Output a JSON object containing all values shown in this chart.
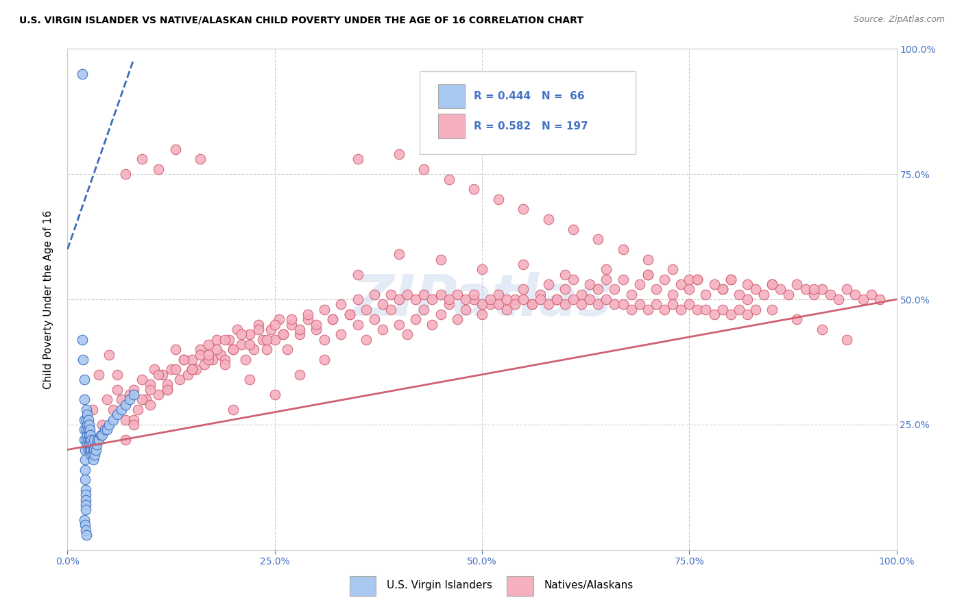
{
  "title": "U.S. VIRGIN ISLANDER VS NATIVE/ALASKAN CHILD POVERTY UNDER THE AGE OF 16 CORRELATION CHART",
  "source": "Source: ZipAtlas.com",
  "ylabel": "Child Poverty Under the Age of 16",
  "xlim": [
    0,
    1.0
  ],
  "ylim": [
    0,
    1.0
  ],
  "xtick_labels": [
    "0.0%",
    "25.0%",
    "50.0%",
    "75.0%",
    "100.0%"
  ],
  "xtick_vals": [
    0.0,
    0.25,
    0.5,
    0.75,
    1.0
  ],
  "ytick_labels_right": [
    "100.0%",
    "75.0%",
    "50.0%",
    "25.0%"
  ],
  "ytick_vals_right": [
    1.0,
    0.75,
    0.5,
    0.25
  ],
  "legend_text1": "R = 0.444   N =  66",
  "legend_text2": "R = 0.582   N = 197",
  "color_vi": "#a8c8f0",
  "color_vi_line": "#3a6bbf",
  "color_vi_line_solid": "#2060c0",
  "color_na": "#f5b0c0",
  "color_na_line": "#d06070",
  "color_accent": "#4472c4",
  "background_color": "#ffffff",
  "grid_color": "#cccccc",
  "watermark": "ZIPatlas",
  "title_fontsize": 10,
  "axis_label_fontsize": 11,
  "tick_fontsize": 10,
  "vi_scatter_x": [
    0.018,
    0.018,
    0.019,
    0.02,
    0.02,
    0.02,
    0.02,
    0.02,
    0.021,
    0.021,
    0.021,
    0.021,
    0.022,
    0.022,
    0.022,
    0.022,
    0.022,
    0.023,
    0.023,
    0.023,
    0.023,
    0.024,
    0.024,
    0.024,
    0.024,
    0.025,
    0.025,
    0.025,
    0.025,
    0.026,
    0.026,
    0.026,
    0.027,
    0.027,
    0.027,
    0.028,
    0.028,
    0.028,
    0.029,
    0.029,
    0.03,
    0.03,
    0.031,
    0.031,
    0.032,
    0.032,
    0.033,
    0.034,
    0.035,
    0.036,
    0.038,
    0.04,
    0.042,
    0.045,
    0.048,
    0.05,
    0.055,
    0.06,
    0.065,
    0.07,
    0.075,
    0.08,
    0.02,
    0.021,
    0.022,
    0.023
  ],
  "vi_scatter_y": [
    0.95,
    0.42,
    0.38,
    0.34,
    0.3,
    0.26,
    0.24,
    0.22,
    0.2,
    0.18,
    0.16,
    0.14,
    0.12,
    0.11,
    0.1,
    0.09,
    0.08,
    0.28,
    0.26,
    0.24,
    0.22,
    0.27,
    0.25,
    0.23,
    0.21,
    0.26,
    0.24,
    0.22,
    0.2,
    0.25,
    0.23,
    0.21,
    0.24,
    0.22,
    0.2,
    0.23,
    0.21,
    0.19,
    0.22,
    0.2,
    0.21,
    0.19,
    0.2,
    0.18,
    0.22,
    0.2,
    0.19,
    0.2,
    0.21,
    0.22,
    0.22,
    0.23,
    0.23,
    0.24,
    0.24,
    0.25,
    0.26,
    0.27,
    0.28,
    0.29,
    0.3,
    0.31,
    0.06,
    0.05,
    0.04,
    0.03
  ],
  "na_scatter_x": [
    0.025,
    0.03,
    0.038,
    0.042,
    0.048,
    0.055,
    0.06,
    0.065,
    0.07,
    0.075,
    0.08,
    0.085,
    0.09,
    0.095,
    0.1,
    0.105,
    0.11,
    0.115,
    0.12,
    0.125,
    0.13,
    0.135,
    0.14,
    0.145,
    0.15,
    0.155,
    0.16,
    0.165,
    0.17,
    0.175,
    0.18,
    0.185,
    0.19,
    0.195,
    0.2,
    0.205,
    0.21,
    0.215,
    0.22,
    0.225,
    0.23,
    0.235,
    0.24,
    0.245,
    0.25,
    0.255,
    0.26,
    0.265,
    0.27,
    0.28,
    0.29,
    0.3,
    0.31,
    0.32,
    0.33,
    0.34,
    0.35,
    0.36,
    0.37,
    0.38,
    0.39,
    0.4,
    0.41,
    0.42,
    0.43,
    0.44,
    0.45,
    0.46,
    0.47,
    0.48,
    0.49,
    0.5,
    0.51,
    0.52,
    0.53,
    0.54,
    0.55,
    0.56,
    0.57,
    0.58,
    0.59,
    0.6,
    0.61,
    0.62,
    0.63,
    0.64,
    0.65,
    0.66,
    0.67,
    0.68,
    0.69,
    0.7,
    0.71,
    0.72,
    0.73,
    0.74,
    0.75,
    0.76,
    0.77,
    0.78,
    0.79,
    0.8,
    0.81,
    0.82,
    0.83,
    0.84,
    0.85,
    0.86,
    0.87,
    0.88,
    0.89,
    0.9,
    0.91,
    0.92,
    0.93,
    0.94,
    0.95,
    0.96,
    0.97,
    0.98,
    0.07,
    0.08,
    0.09,
    0.1,
    0.11,
    0.12,
    0.13,
    0.14,
    0.15,
    0.16,
    0.17,
    0.18,
    0.19,
    0.2,
    0.21,
    0.22,
    0.23,
    0.24,
    0.25,
    0.26,
    0.27,
    0.28,
    0.29,
    0.3,
    0.31,
    0.32,
    0.33,
    0.34,
    0.35,
    0.36,
    0.37,
    0.38,
    0.39,
    0.4,
    0.41,
    0.42,
    0.43,
    0.44,
    0.45,
    0.46,
    0.47,
    0.48,
    0.49,
    0.5,
    0.51,
    0.52,
    0.53,
    0.54,
    0.55,
    0.56,
    0.57,
    0.58,
    0.59,
    0.6,
    0.61,
    0.62,
    0.63,
    0.64,
    0.65,
    0.66,
    0.67,
    0.68,
    0.69,
    0.7,
    0.71,
    0.72,
    0.73,
    0.74,
    0.75,
    0.76,
    0.77,
    0.78,
    0.79,
    0.8,
    0.81,
    0.82,
    0.83
  ],
  "na_scatter_y": [
    0.22,
    0.28,
    0.35,
    0.25,
    0.3,
    0.28,
    0.35,
    0.3,
    0.26,
    0.31,
    0.32,
    0.28,
    0.34,
    0.3,
    0.33,
    0.36,
    0.31,
    0.35,
    0.32,
    0.36,
    0.4,
    0.34,
    0.38,
    0.35,
    0.38,
    0.36,
    0.4,
    0.37,
    0.41,
    0.38,
    0.42,
    0.39,
    0.38,
    0.42,
    0.4,
    0.44,
    0.41,
    0.38,
    0.43,
    0.4,
    0.45,
    0.42,
    0.4,
    0.44,
    0.42,
    0.46,
    0.43,
    0.4,
    0.45,
    0.43,
    0.46,
    0.44,
    0.42,
    0.46,
    0.43,
    0.47,
    0.45,
    0.42,
    0.46,
    0.44,
    0.48,
    0.45,
    0.43,
    0.46,
    0.48,
    0.45,
    0.47,
    0.49,
    0.46,
    0.48,
    0.5,
    0.47,
    0.49,
    0.51,
    0.48,
    0.5,
    0.52,
    0.49,
    0.51,
    0.53,
    0.5,
    0.52,
    0.54,
    0.51,
    0.53,
    0.52,
    0.54,
    0.52,
    0.54,
    0.51,
    0.53,
    0.55,
    0.52,
    0.54,
    0.51,
    0.53,
    0.52,
    0.54,
    0.51,
    0.53,
    0.52,
    0.54,
    0.51,
    0.53,
    0.52,
    0.51,
    0.53,
    0.52,
    0.51,
    0.53,
    0.52,
    0.51,
    0.52,
    0.51,
    0.5,
    0.52,
    0.51,
    0.5,
    0.51,
    0.5,
    0.22,
    0.26,
    0.3,
    0.32,
    0.35,
    0.33,
    0.36,
    0.38,
    0.36,
    0.39,
    0.38,
    0.4,
    0.42,
    0.4,
    0.43,
    0.41,
    0.44,
    0.42,
    0.45,
    0.43,
    0.46,
    0.44,
    0.47,
    0.45,
    0.48,
    0.46,
    0.49,
    0.47,
    0.5,
    0.48,
    0.51,
    0.49,
    0.51,
    0.5,
    0.51,
    0.5,
    0.51,
    0.5,
    0.51,
    0.5,
    0.51,
    0.5,
    0.51,
    0.49,
    0.5,
    0.49,
    0.5,
    0.49,
    0.5,
    0.49,
    0.5,
    0.49,
    0.5,
    0.49,
    0.5,
    0.49,
    0.5,
    0.49,
    0.5,
    0.49,
    0.49,
    0.48,
    0.49,
    0.48,
    0.49,
    0.48,
    0.49,
    0.48,
    0.49,
    0.48,
    0.48,
    0.47,
    0.48,
    0.47,
    0.48,
    0.47,
    0.48
  ],
  "na_extra_x": [
    0.05,
    0.06,
    0.08,
    0.1,
    0.12,
    0.15,
    0.17,
    0.2,
    0.07,
    0.09,
    0.11,
    0.13,
    0.16,
    0.19,
    0.22,
    0.25,
    0.28,
    0.31,
    0.35,
    0.4,
    0.45,
    0.5,
    0.55,
    0.6,
    0.65,
    0.7,
    0.75,
    0.8,
    0.85,
    0.9,
    0.35,
    0.4,
    0.43,
    0.46,
    0.49,
    0.52,
    0.55,
    0.58,
    0.61,
    0.64,
    0.67,
    0.7,
    0.73,
    0.76,
    0.79,
    0.82,
    0.85,
    0.88,
    0.91,
    0.94
  ],
  "na_extra_y": [
    0.39,
    0.32,
    0.25,
    0.29,
    0.32,
    0.36,
    0.39,
    0.28,
    0.75,
    0.78,
    0.76,
    0.8,
    0.78,
    0.37,
    0.34,
    0.31,
    0.35,
    0.38,
    0.55,
    0.59,
    0.58,
    0.56,
    0.57,
    0.55,
    0.56,
    0.55,
    0.54,
    0.54,
    0.53,
    0.52,
    0.78,
    0.79,
    0.76,
    0.74,
    0.72,
    0.7,
    0.68,
    0.66,
    0.64,
    0.62,
    0.6,
    0.58,
    0.56,
    0.54,
    0.52,
    0.5,
    0.48,
    0.46,
    0.44,
    0.42
  ],
  "na_line_x0": 0.0,
  "na_line_y0": 0.2,
  "na_line_x1": 1.0,
  "na_line_y1": 0.5,
  "vi_line_x0": 0.0,
  "vi_line_y0": 0.6,
  "vi_line_x1": 0.08,
  "vi_line_y1": 0.98
}
